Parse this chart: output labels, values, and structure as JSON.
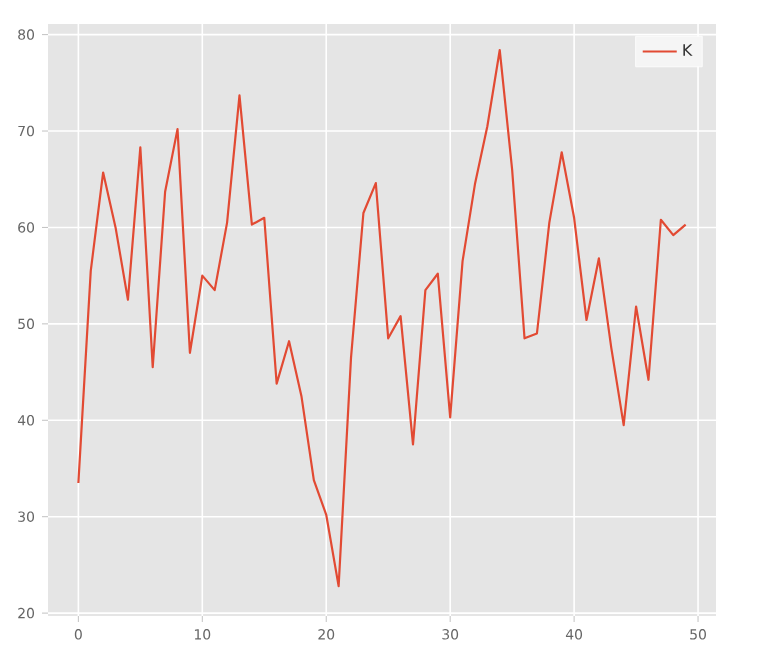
{
  "chart_data": {
    "type": "line",
    "x": [
      0,
      1,
      2,
      3,
      4,
      5,
      6,
      7,
      8,
      9,
      10,
      11,
      12,
      13,
      14,
      15,
      16,
      17,
      18,
      19,
      20,
      21,
      22,
      23,
      24,
      25,
      26,
      27,
      28,
      29,
      30,
      31,
      32,
      33,
      34,
      35,
      36,
      37,
      38,
      39,
      40,
      41,
      42,
      43,
      44,
      45,
      46,
      47,
      48,
      49
    ],
    "series": [
      {
        "name": "K",
        "color": "#e24a33",
        "values": [
          33.5,
          55.5,
          65.7,
          60,
          52.5,
          68.3,
          45.5,
          63.7,
          70.2,
          47,
          55,
          53.5,
          60.5,
          73.7,
          60.3,
          61,
          43.8,
          48.2,
          42.5,
          33.8,
          30.2,
          22.8,
          46.5,
          61.5,
          64.6,
          48.5,
          50.8,
          37.5,
          53.5,
          55.2,
          40.3,
          56.5,
          64.5,
          70.5,
          78.4,
          66,
          48.5,
          49,
          60.5,
          67.8,
          61,
          50.4,
          56.8,
          47.5,
          39.5,
          51.8,
          44.2,
          60.8,
          59.2,
          60.3
        ]
      }
    ],
    "xlim": [
      -2.45,
      51.45
    ],
    "ylim": [
      19.7,
      81.1
    ],
    "xticks": [
      0,
      10,
      20,
      30,
      40,
      50
    ],
    "yticks": [
      20,
      30,
      40,
      50,
      60,
      70,
      80
    ],
    "grid": true,
    "legend": "top right"
  }
}
